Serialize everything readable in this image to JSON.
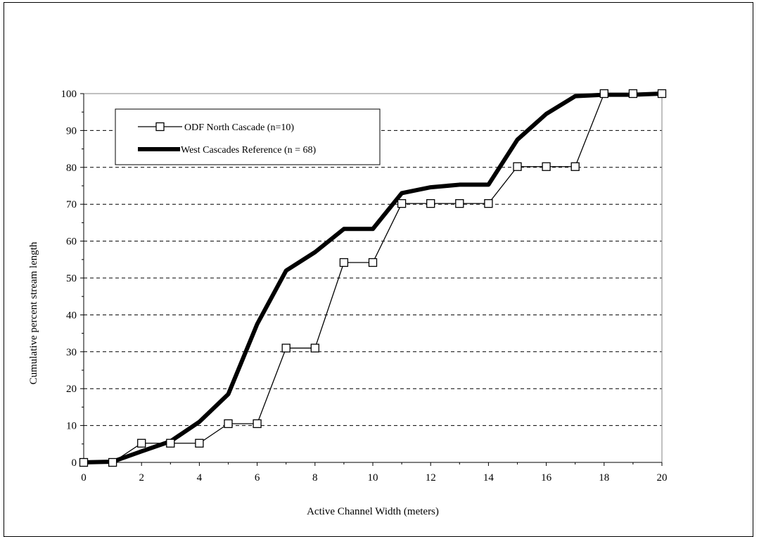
{
  "chart_data": {
    "type": "line",
    "xlabel": "Active Channel Width (meters)",
    "ylabel": "Cumulative percent stream length",
    "xlim": [
      0,
      20
    ],
    "ylim": [
      0,
      100
    ],
    "x_ticks": [
      0,
      2,
      4,
      6,
      8,
      10,
      12,
      14,
      16,
      18,
      20
    ],
    "y_ticks": [
      0,
      10,
      20,
      30,
      40,
      50,
      60,
      70,
      80,
      90,
      100
    ],
    "grid": "horizontal dashed",
    "legend_position": "top-left",
    "series": [
      {
        "name": "ODF North Cascade (n=10)",
        "style": "thin line with open square markers",
        "color": "#000000",
        "x": [
          0,
          1,
          2,
          3,
          4,
          5,
          6,
          7,
          8,
          9,
          10,
          11,
          12,
          13,
          14,
          15,
          16,
          17,
          18,
          19,
          20
        ],
        "y": [
          0,
          0,
          5.2,
          5.2,
          5.2,
          10.5,
          10.5,
          31,
          31,
          54.2,
          54.2,
          70.2,
          70.2,
          70.2,
          70.2,
          80.2,
          80.2,
          80.2,
          100,
          100,
          100
        ]
      },
      {
        "name": "West Cascades Reference (n = 68)",
        "style": "thick line",
        "color": "#000000",
        "x": [
          0,
          1,
          2,
          3,
          4,
          5,
          6,
          7,
          8,
          9,
          10,
          11,
          12,
          13,
          14,
          15,
          16,
          17,
          18,
          19,
          20
        ],
        "y": [
          0,
          0.2,
          3,
          5.7,
          11,
          18.5,
          37.5,
          52,
          57,
          63.3,
          63.3,
          73,
          74.6,
          75.3,
          75.3,
          87.5,
          94.5,
          99.3,
          99.7,
          99.7,
          100
        ]
      }
    ]
  }
}
